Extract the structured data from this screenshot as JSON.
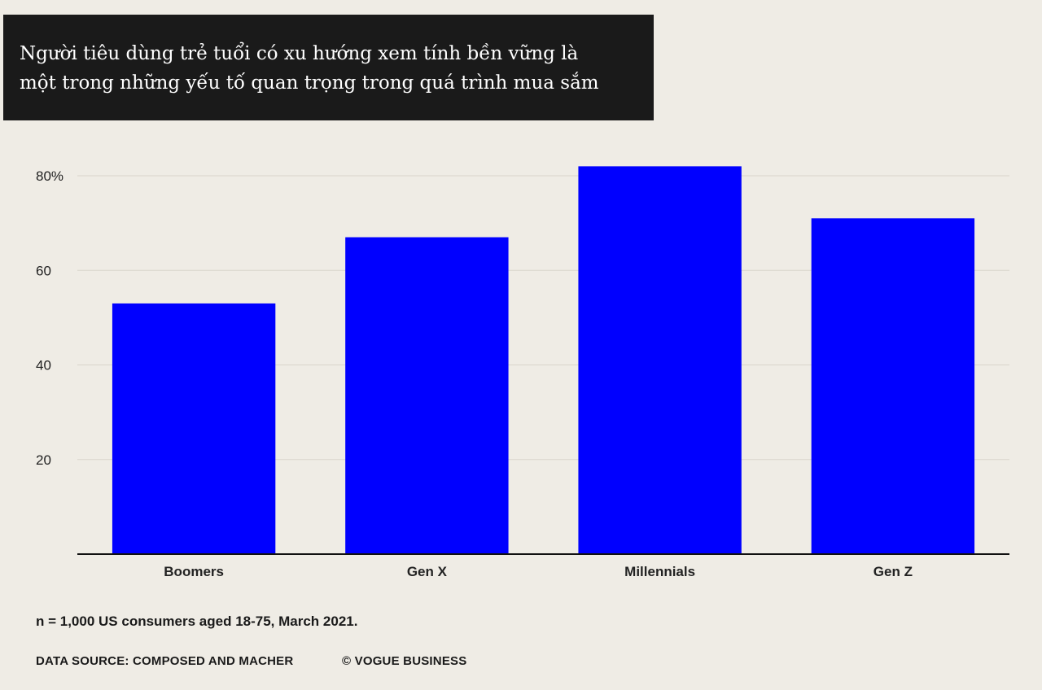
{
  "chart_data": {
    "type": "bar",
    "title_lines": [
      "Người tiêu dùng trẻ tuổi có xu hướng xem tính bền vững là",
      "một trong những yếu tố quan trọng trong quá trình mua sắm"
    ],
    "categories": [
      "Boomers",
      "Gen X",
      "Millennials",
      "Gen Z"
    ],
    "values": [
      53,
      67,
      82,
      71
    ],
    "ylim": [
      0,
      80
    ],
    "yticks": [
      20,
      40,
      60,
      80
    ],
    "ytick_labels": [
      "20",
      "40",
      "60",
      "80%"
    ],
    "xlabel": "",
    "ylabel": "",
    "grid": true,
    "bar_color": "#0000ff"
  },
  "footer": {
    "note": "n = 1,000 US consumers aged 18-75, March 2021.",
    "source": "DATA SOURCE: COMPOSED AND MACHER",
    "copyright": "© VOGUE BUSINESS"
  }
}
